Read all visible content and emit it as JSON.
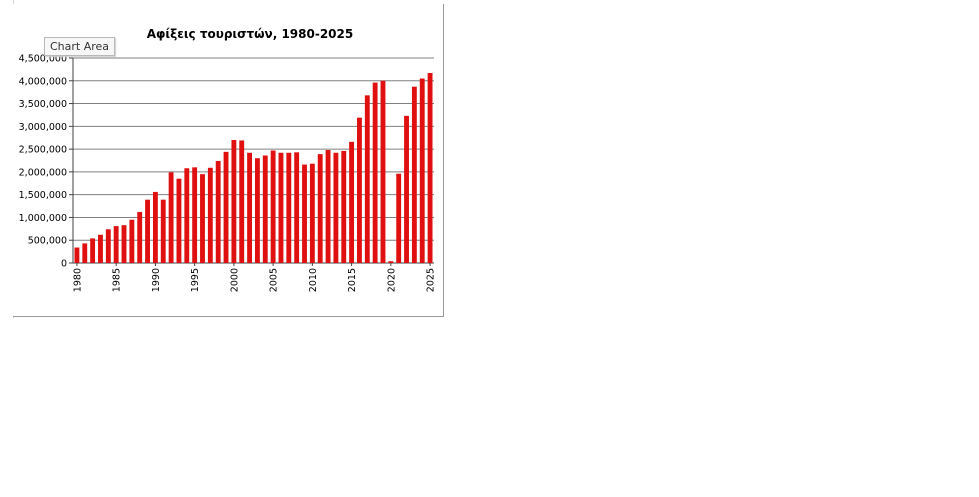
{
  "ui": {
    "tooltip": "Chart Area"
  },
  "chart_data": {
    "type": "bar",
    "title": "Αφίξεις τουριστών, 1980-2025",
    "xlabel": "",
    "ylabel": "",
    "ylim": [
      0,
      4500000
    ],
    "yticks": [
      0,
      500000,
      1000000,
      1500000,
      2000000,
      2500000,
      3000000,
      3500000,
      4000000,
      4500000
    ],
    "ytick_labels": [
      "0",
      "500,000",
      "1,000,000",
      "1,500,000",
      "2,000,000",
      "2,500,000",
      "3,000,000",
      "3,500,000",
      "4,000,000",
      "4,500,000"
    ],
    "xtick_labels": [
      "1980",
      "1985",
      "1990",
      "1995",
      "2000",
      "2005",
      "2010",
      "2015",
      "2020",
      "2025"
    ],
    "grid": true,
    "bar_color": "#e01010",
    "categories": [
      1980,
      1981,
      1982,
      1983,
      1984,
      1985,
      1986,
      1987,
      1988,
      1989,
      1990,
      1991,
      1992,
      1993,
      1994,
      1995,
      1996,
      1997,
      1998,
      1999,
      2000,
      2001,
      2002,
      2003,
      2004,
      2005,
      2006,
      2007,
      2008,
      2009,
      2010,
      2011,
      2012,
      2013,
      2014,
      2015,
      2016,
      2017,
      2018,
      2019,
      2020,
      2021,
      2022,
      2023,
      2024,
      2025
    ],
    "values": [
      340000,
      430000,
      540000,
      620000,
      740000,
      810000,
      830000,
      950000,
      1120000,
      1390000,
      1560000,
      1390000,
      1990000,
      1850000,
      2080000,
      2100000,
      1950000,
      2090000,
      2240000,
      2440000,
      2700000,
      2690000,
      2420000,
      2300000,
      2360000,
      2470000,
      2420000,
      2420000,
      2430000,
      2160000,
      2180000,
      2390000,
      2480000,
      2420000,
      2460000,
      2660000,
      3190000,
      3680000,
      3960000,
      4000000,
      40000,
      1960000,
      3230000,
      3870000,
      4050000,
      4170000
    ]
  }
}
